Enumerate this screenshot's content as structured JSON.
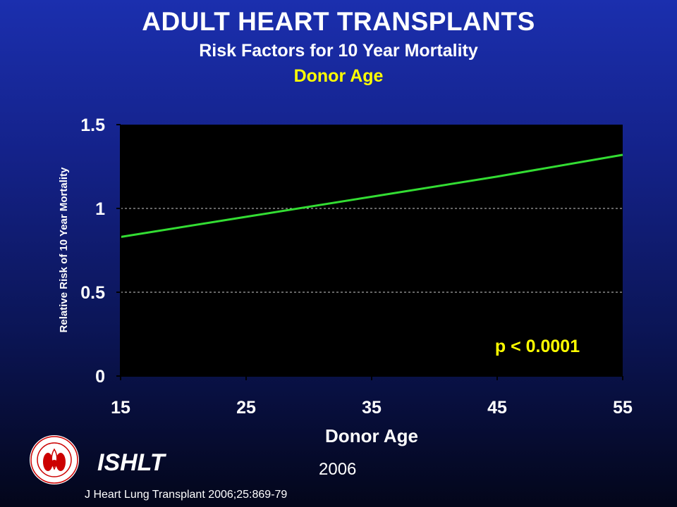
{
  "header": {
    "title": "ADULT HEART TRANSPLANTS",
    "subtitle": "Risk Factors for 10 Year Mortality",
    "subtitle2": "Donor Age"
  },
  "colors": {
    "background_top": "#1b2fae",
    "background_bottom": "#03061a",
    "plot_background": "#000000",
    "line": "#33dd33",
    "highlight": "#ffff00",
    "text": "#ffffff"
  },
  "chart_data": {
    "type": "line",
    "xlabel": "Donor Age",
    "ylabel": "Relative Risk of 10 Year Mortality",
    "xlim": [
      15,
      55
    ],
    "ylim": [
      0,
      1.5
    ],
    "xticks": [
      "15",
      "25",
      "35",
      "45",
      "55"
    ],
    "yticks": [
      "0",
      "0.5",
      "1",
      "1.5"
    ],
    "grid": "horizontal dashed",
    "series": [
      {
        "x": [
          15,
          25,
          35,
          45,
          55
        ],
        "values": [
          0.83,
          0.95,
          1.07,
          1.19,
          1.32
        ]
      }
    ],
    "annotation": "p < 0.0001"
  },
  "footer": {
    "org": "ISHLT",
    "year": "2006",
    "citation": "J Heart Lung Transplant 2006;25:869-79",
    "logo_icon": "ishlt-seal-icon"
  }
}
